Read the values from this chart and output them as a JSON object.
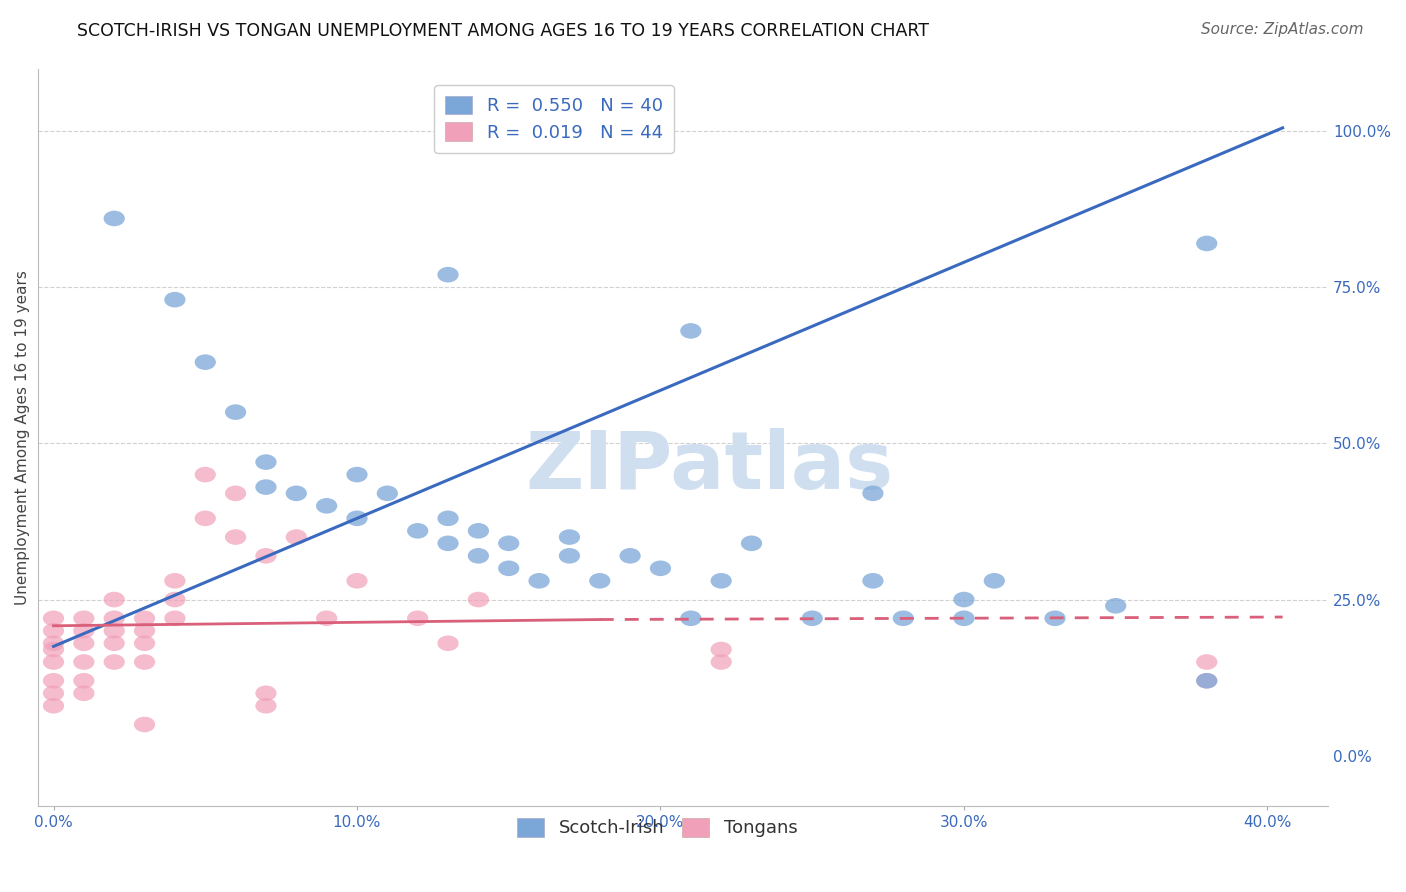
{
  "title": "SCOTCH-IRISH VS TONGAN UNEMPLOYMENT AMONG AGES 16 TO 19 YEARS CORRELATION CHART",
  "source": "Source: ZipAtlas.com",
  "ylabel": "Unemployment Among Ages 16 to 19 years",
  "xlabel_ticks": [
    "0.0%",
    "10.0%",
    "20.0%",
    "30.0%",
    "40.0%"
  ],
  "xlabel_vals": [
    0.0,
    0.1,
    0.2,
    0.3,
    0.4
  ],
  "ylabel_ticks": [
    "0.0%",
    "25.0%",
    "50.0%",
    "75.0%",
    "100.0%"
  ],
  "ylabel_vals": [
    0.0,
    0.25,
    0.5,
    0.75,
    1.0
  ],
  "xlim": [
    -0.005,
    0.42
  ],
  "ylim": [
    -0.08,
    1.1
  ],
  "scotch_irish_R": 0.55,
  "scotch_irish_N": 40,
  "tongan_R": 0.019,
  "tongan_N": 44,
  "scotch_irish_color": "#7ba7d8",
  "tongan_color": "#f0a0b8",
  "scotch_irish_line_color": "#3a6abf",
  "tongan_line_color": "#d95f7a",
  "watermark_color": "#d0dff0",
  "grid_color": "#cccccc",
  "background_color": "#ffffff",
  "title_fontsize": 12.5,
  "label_fontsize": 11,
  "tick_fontsize": 11,
  "legend_fontsize": 13,
  "source_fontsize": 11,
  "si_x": [
    0.02,
    0.04,
    0.05,
    0.06,
    0.07,
    0.07,
    0.08,
    0.09,
    0.1,
    0.1,
    0.11,
    0.12,
    0.13,
    0.13,
    0.14,
    0.14,
    0.15,
    0.15,
    0.16,
    0.17,
    0.17,
    0.18,
    0.19,
    0.2,
    0.21,
    0.22,
    0.23,
    0.25,
    0.27,
    0.28,
    0.3,
    0.31,
    0.33,
    0.35,
    0.27,
    0.3,
    0.38,
    0.13,
    0.21,
    0.38
  ],
  "si_y": [
    0.86,
    0.73,
    0.63,
    0.55,
    0.47,
    0.43,
    0.42,
    0.4,
    0.38,
    0.45,
    0.42,
    0.36,
    0.34,
    0.38,
    0.32,
    0.36,
    0.3,
    0.34,
    0.28,
    0.35,
    0.32,
    0.28,
    0.32,
    0.3,
    0.22,
    0.28,
    0.34,
    0.22,
    0.28,
    0.22,
    0.25,
    0.28,
    0.22,
    0.24,
    0.42,
    0.22,
    0.12,
    0.77,
    0.68,
    0.82
  ],
  "to_x": [
    0.0,
    0.0,
    0.0,
    0.0,
    0.0,
    0.0,
    0.0,
    0.0,
    0.01,
    0.01,
    0.01,
    0.01,
    0.01,
    0.01,
    0.02,
    0.02,
    0.02,
    0.02,
    0.02,
    0.03,
    0.03,
    0.03,
    0.03,
    0.04,
    0.04,
    0.04,
    0.05,
    0.05,
    0.06,
    0.06,
    0.07,
    0.08,
    0.09,
    0.1,
    0.12,
    0.13,
    0.14,
    0.22,
    0.22,
    0.38,
    0.38,
    0.03,
    0.07,
    0.07
  ],
  "to_y": [
    0.18,
    0.2,
    0.22,
    0.15,
    0.17,
    0.12,
    0.1,
    0.08,
    0.2,
    0.22,
    0.18,
    0.15,
    0.12,
    0.1,
    0.2,
    0.22,
    0.18,
    0.15,
    0.25,
    0.22,
    0.2,
    0.18,
    0.15,
    0.28,
    0.25,
    0.22,
    0.45,
    0.38,
    0.42,
    0.35,
    0.32,
    0.35,
    0.22,
    0.28,
    0.22,
    0.18,
    0.25,
    0.17,
    0.15,
    0.15,
    0.12,
    0.05,
    0.1,
    0.08
  ],
  "si_line_x0": 0.0,
  "si_line_y0": 0.175,
  "si_line_x1": 0.405,
  "si_line_y1": 1.005,
  "to_line_x0": 0.0,
  "to_line_y0": 0.208,
  "to_line_x1": 0.18,
  "to_line_y1": 0.218,
  "to_line_dash_x0": 0.18,
  "to_line_dash_y0": 0.218,
  "to_line_dash_x1": 0.405,
  "to_line_dash_y1": 0.222
}
